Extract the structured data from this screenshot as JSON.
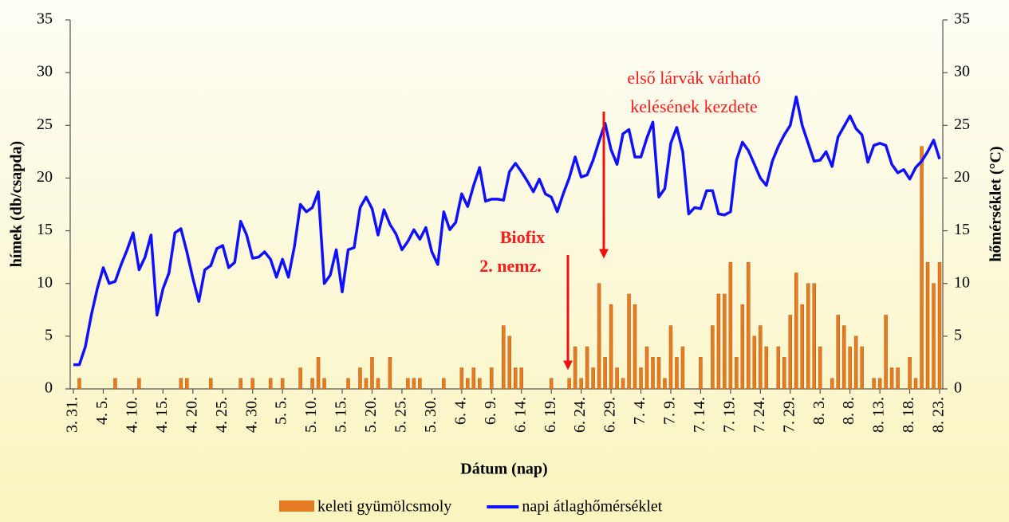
{
  "chart_data": {
    "type": "bar",
    "x_label": "Dátum (nap)",
    "y_label": "hímek (db/csapda)",
    "y2_label": "hőmérséklet (°C)",
    "annotations": [
      "első lárvák várható",
      "kelésének kezdete",
      "Biofix",
      "2. nemz."
    ],
    "categories": [
      "3. 31.",
      null,
      null,
      null,
      null,
      "4. 5.",
      null,
      null,
      null,
      null,
      "4. 10.",
      null,
      null,
      null,
      null,
      "4. 15.",
      null,
      null,
      null,
      null,
      "4. 20.",
      null,
      null,
      null,
      null,
      "4. 25.",
      null,
      null,
      null,
      null,
      "4. 30.",
      null,
      null,
      null,
      null,
      "5. 5.",
      null,
      null,
      null,
      null,
      "5. 10.",
      null,
      null,
      null,
      null,
      "5. 15.",
      null,
      null,
      null,
      null,
      "5. 20.",
      null,
      null,
      null,
      null,
      "5. 25.",
      null,
      null,
      null,
      null,
      "5. 30.",
      null,
      null,
      null,
      null,
      "6. 4.",
      null,
      null,
      null,
      null,
      "6. 9.",
      null,
      null,
      null,
      null,
      "6. 14.",
      null,
      null,
      null,
      null,
      "6. 19.",
      null,
      null,
      null,
      null,
      "6. 24.",
      null,
      null,
      null,
      null,
      "6. 29.",
      null,
      null,
      null,
      null,
      "7. 4.",
      null,
      null,
      null,
      null,
      "7. 9.",
      null,
      null,
      null,
      null,
      "7. 14.",
      null,
      null,
      null,
      null,
      "7. 19.",
      null,
      null,
      null,
      null,
      "7. 24.",
      null,
      null,
      null,
      null,
      "7. 29.",
      null,
      null,
      null,
      null,
      "8. 3.",
      null,
      null,
      null,
      null,
      "8. 8.",
      null,
      null,
      null,
      null,
      "8. 13.",
      null,
      null,
      null,
      null,
      "8. 18.",
      null,
      null,
      null,
      null,
      "8. 23."
    ],
    "series": [
      {
        "name": "keleti gyümölcsmoly",
        "type": "bar",
        "color": "#e57b22",
        "values": [
          0,
          1,
          0,
          0,
          0,
          0,
          0,
          1,
          0,
          0,
          0,
          1,
          0,
          0,
          0,
          0,
          0,
          0,
          1,
          1,
          0,
          0,
          0,
          1,
          0,
          0,
          0,
          0,
          1,
          0,
          1,
          0,
          0,
          1,
          0,
          1,
          0,
          0,
          2,
          0,
          1,
          3,
          1,
          0,
          0,
          0,
          1,
          0,
          2,
          1,
          3,
          1,
          0,
          3,
          0,
          0,
          1,
          1,
          1,
          0,
          0,
          0,
          1,
          0,
          0,
          2,
          1,
          2,
          1,
          0,
          2,
          0,
          6,
          5,
          2,
          2,
          0,
          0,
          0,
          0,
          1,
          0,
          0,
          1,
          4,
          1,
          4,
          2,
          10,
          3,
          8,
          2,
          1,
          9,
          8,
          2,
          4,
          3,
          3,
          1,
          6,
          3,
          4,
          0,
          0,
          3,
          0,
          6,
          9,
          9,
          12,
          3,
          8,
          12,
          5,
          6,
          4,
          0,
          4,
          3,
          7,
          11,
          8,
          10,
          10,
          4,
          0,
          1,
          7,
          6,
          4,
          5,
          4,
          0,
          1,
          1,
          7,
          2,
          2,
          0,
          3,
          1,
          23,
          12,
          10,
          12
        ]
      },
      {
        "name": "napi átlaghőmérséklet",
        "type": "line",
        "axis": "y2",
        "color": "#1010ff",
        "values": [
          2.3,
          2.3,
          4,
          7,
          9.5,
          11.5,
          10,
          10.2,
          11.8,
          13.2,
          14.8,
          11.3,
          12.5,
          14.6,
          7,
          9.5,
          11,
          14.8,
          15.2,
          13,
          10.5,
          8.3,
          11.3,
          11.7,
          13.3,
          13.6,
          11.5,
          12,
          15.9,
          14.6,
          12.4,
          12.5,
          13,
          12.3,
          10.6,
          12.3,
          10.6,
          13.5,
          17.5,
          16.8,
          17.2,
          18.7,
          10,
          10.8,
          13.2,
          9.2,
          13.2,
          13.4,
          17.2,
          18.2,
          17.1,
          14.6,
          17,
          15.6,
          14.7,
          13.2,
          14,
          15.1,
          14.2,
          15.3,
          13,
          11.8,
          16.8,
          15.1,
          15.8,
          18.5,
          17.3,
          19.3,
          21,
          17.8,
          18,
          18,
          17.9,
          20.6,
          21.4,
          20.6,
          19.7,
          18.7,
          19.9,
          18.5,
          18.2,
          16.8,
          18.5,
          20,
          22,
          20.1,
          20.3,
          21.7,
          23.5,
          25.2,
          22.7,
          21.3,
          24.2,
          24.6,
          22,
          22,
          23.8,
          25.3,
          18.2,
          19,
          23.3,
          24.8,
          22.5,
          16.6,
          17.2,
          17.1,
          18.8,
          18.8,
          16.6,
          16.5,
          16.8,
          21.7,
          23.4,
          22.6,
          21.3,
          20,
          19.3,
          21.6,
          23,
          24.1,
          25,
          27.7,
          25,
          23.3,
          21.6,
          21.7,
          22.5,
          21.1,
          23.9,
          24.9,
          25.9,
          24.7,
          24.1,
          21.5,
          23.1,
          23.3,
          23.1,
          21.3,
          20.5,
          20.8,
          19.9,
          21,
          21.6,
          22.5,
          23.6,
          21.8
        ]
      }
    ],
    "ylim": [
      0,
      35
    ],
    "yticks": [
      0,
      5,
      10,
      15,
      20,
      25,
      30,
      35
    ],
    "y2lim": [
      0,
      35
    ],
    "y2ticks": [
      0,
      5,
      10,
      15,
      20,
      25,
      30,
      35
    ],
    "grid": false
  }
}
